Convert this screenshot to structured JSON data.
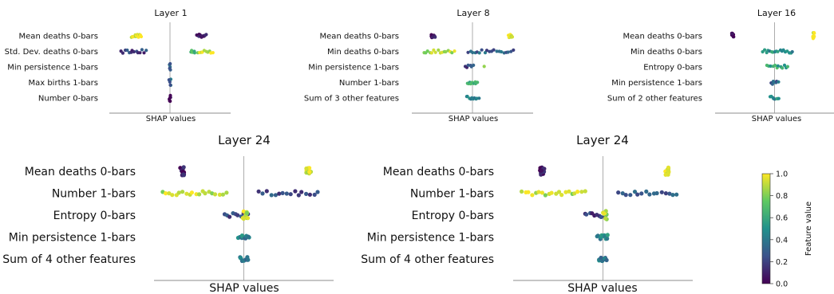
{
  "chart_data": [
    {
      "type": "scatter",
      "subtype": "shap-beeswarm",
      "title": "Layer 1",
      "xlabel": "SHAP values",
      "features": [
        "Mean deaths 0-bars",
        "Std. Dev. deaths 0-bars",
        "Min persistence 1-bars",
        "Max births 1-bars",
        "Number 0-bars"
      ],
      "clusters": [
        [
          {
            "x": -0.55,
            "w": 0.15,
            "v": 0.95,
            "n": 14
          },
          {
            "x": 0.52,
            "w": 0.14,
            "v": 0.05,
            "n": 14
          }
        ],
        [
          {
            "x": -0.6,
            "w": 0.4,
            "v": 0.2,
            "n": 14
          },
          {
            "x": 0.38,
            "w": 0.07,
            "v": 0.7,
            "n": 5
          },
          {
            "x": 0.58,
            "w": 0.25,
            "v": 0.9,
            "n": 10
          }
        ],
        [
          {
            "x": 0.0,
            "w": 0.02,
            "v": 0.3,
            "n": 6
          }
        ],
        [
          {
            "x": 0.0,
            "w": 0.02,
            "v": 0.35,
            "n": 5
          }
        ],
        [
          {
            "x": 0.0,
            "w": 0.015,
            "v": 0.08,
            "n": 6
          }
        ]
      ]
    },
    {
      "type": "scatter",
      "subtype": "shap-beeswarm",
      "title": "Layer 8",
      "xlabel": "SHAP values",
      "features": [
        "Mean deaths 0-bars",
        "Min deaths 0-bars",
        "Min persistence 1-bars",
        "Number 1-bars",
        "Sum of 3 other features"
      ],
      "clusters": [
        [
          {
            "x": -0.65,
            "w": 0.06,
            "v": 0.05,
            "n": 12
          },
          {
            "x": 0.62,
            "w": 0.06,
            "v": 0.97,
            "n": 12
          }
        ],
        [
          {
            "x": -0.55,
            "w": 0.5,
            "v": 0.9,
            "n": 16
          },
          {
            "x": 0.3,
            "w": 0.75,
            "v": 0.3,
            "n": 20
          }
        ],
        [
          {
            "x": -0.05,
            "w": 0.12,
            "v": 0.2,
            "n": 6
          },
          {
            "x": 0.2,
            "w": 0.03,
            "v": 0.95,
            "n": 1
          }
        ],
        [
          {
            "x": 0.0,
            "w": 0.15,
            "v": 0.6,
            "n": 10
          }
        ],
        [
          {
            "x": 0.0,
            "w": 0.2,
            "v": 0.45,
            "n": 10
          }
        ]
      ]
    },
    {
      "type": "scatter",
      "subtype": "shap-beeswarm",
      "title": "Layer 16",
      "xlabel": "SHAP values",
      "features": [
        "Mean deaths 0-bars",
        "Min deaths 0-bars",
        "Entropy 0-bars",
        "Min persistence 1-bars",
        "Sum of 2 other features"
      ],
      "clusters": [
        [
          {
            "x": -0.7,
            "w": 0.04,
            "v": 0.05,
            "n": 8
          },
          {
            "x": 0.65,
            "w": 0.04,
            "v": 0.97,
            "n": 8
          }
        ],
        [
          {
            "x": 0.05,
            "w": 0.5,
            "v": 0.5,
            "n": 18
          }
        ],
        [
          {
            "x": 0.05,
            "w": 0.35,
            "v": 0.6,
            "n": 12
          }
        ],
        [
          {
            "x": 0.0,
            "w": 0.12,
            "v": 0.3,
            "n": 8
          }
        ],
        [
          {
            "x": 0.0,
            "w": 0.15,
            "v": 0.5,
            "n": 8
          }
        ]
      ]
    },
    {
      "type": "scatter",
      "subtype": "shap-beeswarm",
      "title": "Layer 24",
      "xlabel": "SHAP values",
      "features": [
        "Mean deaths 0-bars",
        "Number 1-bars",
        "Entropy 0-bars",
        "Min persistence 1-bars",
        "Sum of 4 other features"
      ],
      "clusters": [
        [
          {
            "x": -0.68,
            "w": 0.04,
            "v": 0.05,
            "n": 14
          },
          {
            "x": 0.72,
            "w": 0.04,
            "v": 0.97,
            "n": 14
          }
        ],
        [
          {
            "x": -0.55,
            "w": 0.7,
            "v": 0.9,
            "n": 20
          },
          {
            "x": 0.5,
            "w": 0.65,
            "v": 0.25,
            "n": 16
          }
        ],
        [
          {
            "x": -0.08,
            "w": 0.25,
            "v": 0.2,
            "n": 10
          },
          {
            "x": 0.02,
            "w": 0.05,
            "v": 0.9,
            "n": 10
          }
        ],
        [
          {
            "x": 0.0,
            "w": 0.12,
            "v": 0.45,
            "n": 12
          }
        ],
        [
          {
            "x": 0.0,
            "w": 0.1,
            "v": 0.4,
            "n": 10
          }
        ]
      ]
    },
    {
      "type": "scatter",
      "subtype": "shap-beeswarm",
      "title": "Layer 24",
      "xlabel": "SHAP values",
      "features": [
        "Mean deaths 0-bars",
        "Number 1-bars",
        "Entropy 0-bars",
        "Min persistence 1-bars",
        "Sum of 4 other features"
      ],
      "clusters": [
        [
          {
            "x": -0.68,
            "w": 0.04,
            "v": 0.05,
            "n": 14
          },
          {
            "x": 0.72,
            "w": 0.04,
            "v": 0.97,
            "n": 14
          }
        ],
        [
          {
            "x": -0.55,
            "w": 0.7,
            "v": 0.9,
            "n": 20
          },
          {
            "x": 0.5,
            "w": 0.65,
            "v": 0.25,
            "n": 16
          }
        ],
        [
          {
            "x": -0.08,
            "w": 0.25,
            "v": 0.2,
            "n": 10
          },
          {
            "x": 0.02,
            "w": 0.05,
            "v": 0.9,
            "n": 10
          }
        ],
        [
          {
            "x": 0.0,
            "w": 0.12,
            "v": 0.45,
            "n": 12
          }
        ],
        [
          {
            "x": 0.0,
            "w": 0.1,
            "v": 0.4,
            "n": 10
          }
        ]
      ]
    }
  ],
  "colorbar": {
    "label": "Feature value",
    "ticks": [
      "0.0",
      "0.2",
      "0.4",
      "0.6",
      "0.8",
      "1.0"
    ]
  },
  "colormap": [
    "#440154",
    "#3b528b",
    "#21918c",
    "#5ec962",
    "#fde725"
  ]
}
